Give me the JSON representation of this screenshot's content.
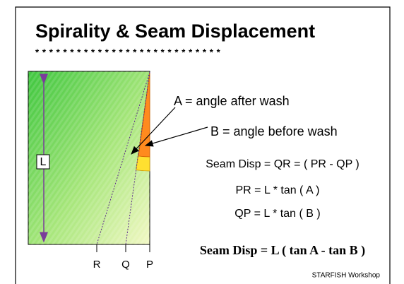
{
  "title": "Spirality & Seam Displacement",
  "divider": "* * * * * * * * * * * * * * * * * * * * * * * * * * *",
  "diagram": {
    "length_label": "L",
    "points": [
      "R",
      "Q",
      "P"
    ]
  },
  "callouts": {
    "a": "A = angle after wash",
    "b": "B = angle before wash"
  },
  "formulas": [
    "Seam Disp = QR = ( PR - QP )",
    "PR = L * tan ( A )",
    "QP = L * tan ( B )"
  ],
  "result": "Seam Disp = L ( tan A - tan B )",
  "footer": "STARFISH Workshop"
}
